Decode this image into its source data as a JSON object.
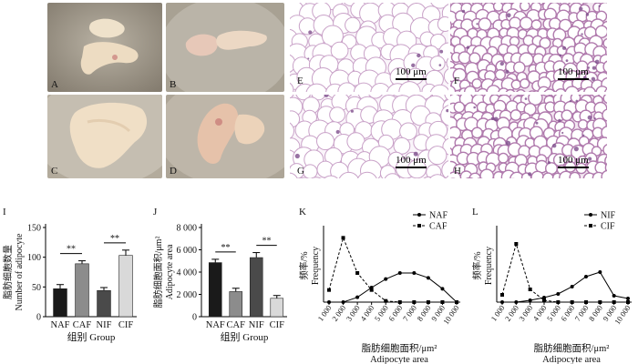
{
  "photo_panels": [
    {
      "letter": "A"
    },
    {
      "letter": "B"
    },
    {
      "letter": "C"
    },
    {
      "letter": "D"
    }
  ],
  "histology_panels": [
    {
      "letter": "E",
      "scale": "100 μm"
    },
    {
      "letter": "F",
      "scale": "100 μm"
    },
    {
      "letter": "G",
      "scale": "100 μm"
    },
    {
      "letter": "H",
      "scale": "100 μm"
    }
  ],
  "chart_data": [
    {
      "panel": "I",
      "type": "bar",
      "ylabel_cn": "脂肪细胞数量",
      "ylabel_en": "Number of adipocyte",
      "xlabel": "组别 Group",
      "categories": [
        "NAF",
        "CAF",
        "NIF",
        "CIF"
      ],
      "values": [
        47,
        89,
        44,
        103
      ],
      "errors": [
        7,
        5,
        5,
        9
      ],
      "bar_colors": [
        "#1a1a1a",
        "#8c8c8c",
        "#4a4a4a",
        "#d9d9d9"
      ],
      "ylim": [
        0,
        150
      ],
      "yticks": [
        "0",
        "50",
        "100",
        "150"
      ],
      "significance": [
        "**",
        "**"
      ]
    },
    {
      "panel": "J",
      "type": "bar",
      "ylabel_cn": "脂肪细胞面积/μm²",
      "ylabel_en": "Adipocyte area",
      "xlabel": "组别 Group",
      "categories": [
        "NAF",
        "CAF",
        "NIF",
        "CIF"
      ],
      "values": [
        4850,
        2250,
        5300,
        1650
      ],
      "errors": [
        300,
        300,
        450,
        250
      ],
      "bar_colors": [
        "#1a1a1a",
        "#8c8c8c",
        "#4a4a4a",
        "#d9d9d9"
      ],
      "ylim": [
        0,
        8000
      ],
      "yticks": [
        "0",
        "2 000",
        "4 000",
        "6 000",
        "8 000"
      ],
      "significance": [
        "**",
        "**"
      ]
    },
    {
      "panel": "K",
      "type": "line",
      "ylabel_cn": "频率/%",
      "ylabel_en": "Frequency",
      "xlabel_cn": "脂肪细胞面积/μm²",
      "xlabel_en": "Adipocyte area",
      "x": [
        "1 000",
        "2 000",
        "3 000",
        "4 000",
        "5 000",
        "6 000",
        "7 000",
        "8 000",
        "9 000",
        "10 000"
      ],
      "ylim": [
        0,
        60
      ],
      "series": [
        {
          "name": "NAF",
          "marker": "circle",
          "dash": false,
          "values": [
            0,
            0,
            4,
            12,
            19,
            24,
            24,
            20,
            11,
            0
          ]
        },
        {
          "name": "CAF",
          "marker": "square",
          "dash": true,
          "values": [
            10,
            53,
            24,
            10,
            1,
            0,
            0,
            0,
            0,
            0
          ]
        }
      ]
    },
    {
      "panel": "L",
      "type": "line",
      "ylabel_cn": "频率/%",
      "ylabel_en": "Frequency",
      "xlabel_cn": "脂肪细胞面积/μm²",
      "xlabel_en": "Adipocyte area",
      "x": [
        "1 000",
        "2 000",
        "3 000",
        "4 000",
        "5 000",
        "6 000",
        "7 000",
        "8 000",
        "9 000",
        "10 000"
      ],
      "ylim": [
        0,
        80
      ],
      "series": [
        {
          "name": "NIF",
          "marker": "circle",
          "dash": false,
          "values": [
            0,
            0,
            2,
            5,
            9,
            17,
            28,
            33,
            7,
            4
          ]
        },
        {
          "name": "CIF",
          "marker": "square",
          "dash": true,
          "values": [
            8,
            64,
            14,
            2,
            0,
            0,
            0,
            0,
            0,
            0
          ]
        }
      ]
    }
  ]
}
